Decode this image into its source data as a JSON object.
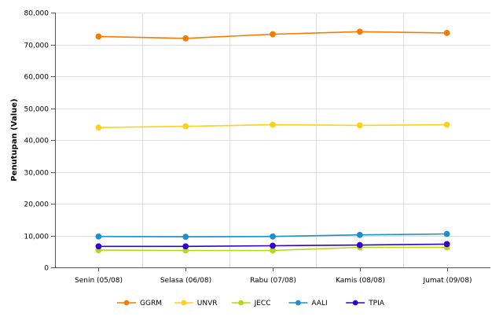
{
  "chart_data": {
    "type": "line",
    "title": "",
    "xlabel": "",
    "ylabel": "Penutupan (Value)",
    "categories": [
      "Senin (05/08)",
      "Selasa (06/08)",
      "Rabu (07/08)",
      "Kamis (08/08)",
      "Jumat (09/08)"
    ],
    "ylim": [
      0,
      80000
    ],
    "yticks": [
      0,
      10000,
      20000,
      30000,
      40000,
      50000,
      60000,
      70000,
      80000
    ],
    "ytick_labels": [
      "0",
      "10,000",
      "20,000",
      "30,000",
      "40,000",
      "50,000",
      "60,000",
      "70,000",
      "80,000"
    ],
    "grid": true,
    "legend_position": "bottom",
    "series": [
      {
        "name": "GGRM",
        "color": "#f57c00",
        "values": [
          72500,
          71900,
          73200,
          74000,
          73600
        ]
      },
      {
        "name": "UNVR",
        "color": "#ffd11a",
        "values": [
          43900,
          44300,
          44800,
          44600,
          44800
        ]
      },
      {
        "name": "JECC",
        "color": "#b3d916",
        "values": [
          5400,
          5300,
          5300,
          6300,
          6300
        ]
      },
      {
        "name": "AALI",
        "color": "#1a8fd1",
        "values": [
          9700,
          9600,
          9700,
          10200,
          10500
        ]
      },
      {
        "name": "TPIA",
        "color": "#3300cc",
        "values": [
          6600,
          6600,
          6800,
          7000,
          7300
        ]
      }
    ]
  }
}
